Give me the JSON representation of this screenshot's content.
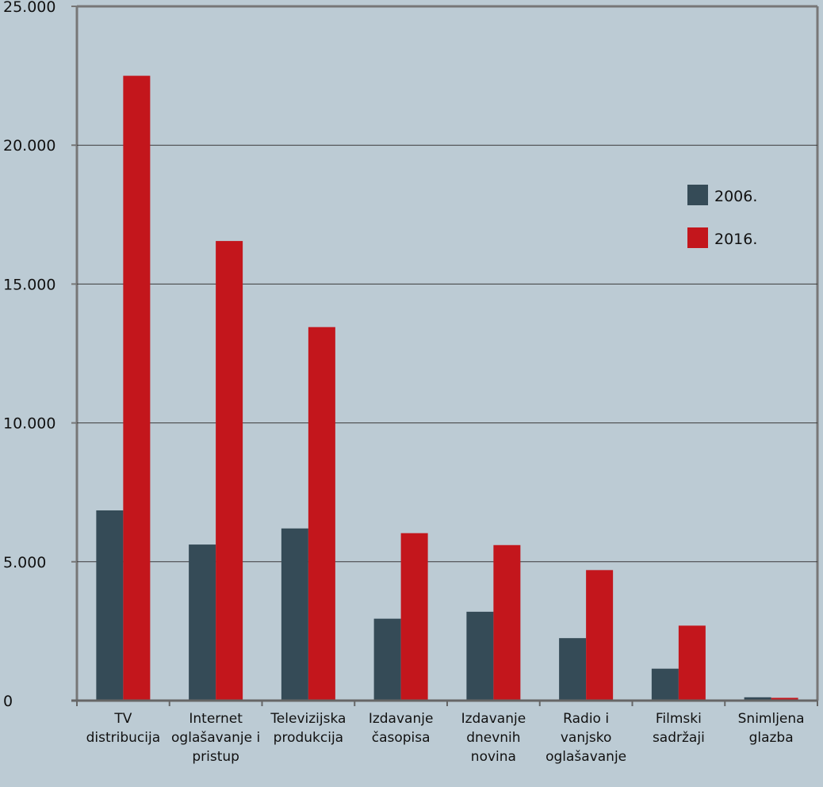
{
  "chart_data": {
    "type": "bar",
    "title": "",
    "xlabel": "",
    "ylabel": "",
    "ylim": [
      0,
      25000
    ],
    "yticks": [
      0,
      5000,
      10000,
      15000,
      20000,
      25000
    ],
    "ytick_labels": [
      "0",
      "5.000",
      "10.000",
      "15.000",
      "20.000",
      "25.000"
    ],
    "grid": true,
    "legend_position": "right",
    "categories": [
      [
        "TV",
        "distribucija"
      ],
      [
        "Internet",
        "oglašavanje i",
        "pristup"
      ],
      [
        "Televizijska",
        "produkcija"
      ],
      [
        "Izdavanje",
        "časopisa"
      ],
      [
        "Izdavanje",
        "dnevnih",
        "novina"
      ],
      [
        "Radio i",
        "vanjsko",
        "oglašavanje"
      ],
      [
        "Filmski",
        "sadržaji"
      ],
      [
        "Snimljena",
        "glazba"
      ]
    ],
    "series": [
      {
        "name": "2006.",
        "color": "#354b57",
        "values": [
          6850,
          5620,
          6200,
          2950,
          3200,
          2250,
          1150,
          120
        ]
      },
      {
        "name": "2016.",
        "color": "#c3161c",
        "values": [
          22500,
          16550,
          13450,
          6030,
          5600,
          4700,
          2700,
          100
        ]
      }
    ]
  },
  "colors": {
    "background": "#bccbd4",
    "grid": "#3b3b3b",
    "frame": "#777777"
  }
}
